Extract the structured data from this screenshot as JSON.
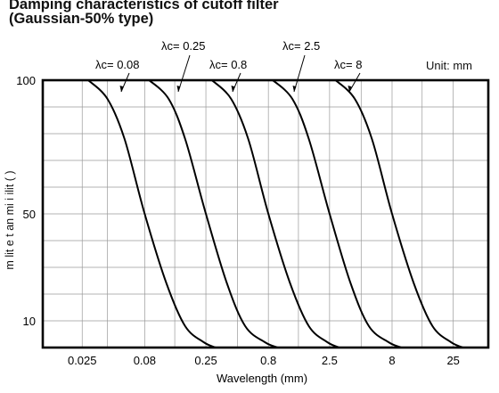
{
  "chart_data": {
    "type": "line",
    "title_lines": [
      "Damping characteristics of cutoff filter",
      "(Gaussian-50% type)"
    ],
    "unit": "Unit: mm",
    "xlabel": "Wavelength (mm)",
    "ylabel": "m lit e t an mi i ilit ( )",
    "x_scale": "log",
    "xlim": [
      0.012,
      48
    ],
    "ylim": [
      0,
      100
    ],
    "x_ticks": [
      "0.025",
      "0.08",
      "0.25",
      "0.8",
      "2.5",
      "8",
      "25"
    ],
    "y_ticks": [
      "10",
      "50",
      "100"
    ],
    "grid": true,
    "series": [
      {
        "name": "λc= 0.08",
        "cutoff": 0.08,
        "x": [
          0.028,
          0.04,
          0.055,
          0.08,
          0.12,
          0.17,
          0.24,
          0.3
        ],
        "y": [
          100,
          93,
          78,
          50,
          24,
          8,
          2,
          0
        ]
      },
      {
        "name": "λc= 0.25",
        "cutoff": 0.25,
        "x": [
          0.087,
          0.125,
          0.17,
          0.25,
          0.37,
          0.52,
          0.75,
          0.95
        ],
        "y": [
          100,
          93,
          78,
          50,
          24,
          8,
          2,
          0
        ]
      },
      {
        "name": "λc= 0.8",
        "cutoff": 0.8,
        "x": [
          0.28,
          0.4,
          0.55,
          0.8,
          1.2,
          1.7,
          2.4,
          3.0
        ],
        "y": [
          100,
          93,
          78,
          50,
          24,
          8,
          2,
          0
        ]
      },
      {
        "name": "λc= 2.5",
        "cutoff": 2.5,
        "x": [
          0.87,
          1.25,
          1.7,
          2.5,
          3.7,
          5.2,
          7.5,
          9.5
        ],
        "y": [
          100,
          93,
          78,
          50,
          24,
          8,
          2,
          0
        ]
      },
      {
        "name": "λc= 8",
        "cutoff": 8,
        "x": [
          2.8,
          4.0,
          5.5,
          8,
          12,
          17,
          24,
          30
        ],
        "y": [
          100,
          93,
          78,
          50,
          24,
          8,
          2,
          0
        ]
      }
    ]
  }
}
